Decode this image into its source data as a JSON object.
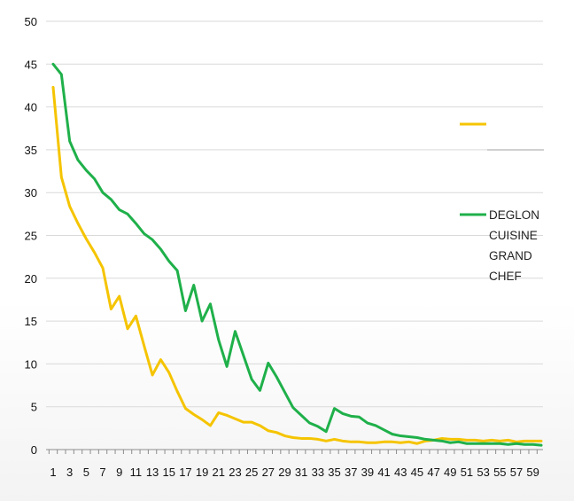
{
  "chart_data": {
    "type": "line",
    "title": "",
    "xlabel": "",
    "ylabel": "",
    "ylim": [
      0,
      50
    ],
    "yticks": [
      0,
      5,
      10,
      15,
      20,
      25,
      30,
      35,
      40,
      45,
      50
    ],
    "x": [
      1,
      2,
      3,
      4,
      5,
      6,
      7,
      8,
      9,
      10,
      11,
      12,
      13,
      14,
      15,
      16,
      17,
      18,
      19,
      20,
      21,
      22,
      23,
      24,
      25,
      26,
      27,
      28,
      29,
      30,
      31,
      32,
      33,
      34,
      35,
      36,
      37,
      38,
      39,
      40,
      41,
      42,
      43,
      44,
      45,
      46,
      47,
      48,
      49,
      50,
      51,
      52,
      53,
      54,
      55,
      56,
      57,
      58,
      59,
      60
    ],
    "xtick_labels": [
      "1",
      "3",
      "5",
      "7",
      "9",
      "11",
      "13",
      "15",
      "17",
      "19",
      "21",
      "23",
      "25",
      "27",
      "29",
      "31",
      "33",
      "35",
      "37",
      "39",
      "41",
      "43",
      "45",
      "47",
      "49",
      "51",
      "53",
      "55",
      "57",
      "59"
    ],
    "grid": true,
    "legend_position": "right",
    "series": [
      {
        "name": "",
        "color": "#f5c400",
        "values": [
          42.3,
          31.8,
          28.4,
          26.4,
          24.6,
          23.0,
          21.2,
          16.4,
          17.9,
          14.1,
          15.6,
          12.1,
          8.7,
          10.5,
          9.0,
          6.8,
          4.8,
          4.1,
          3.5,
          2.8,
          4.3,
          4.0,
          3.6,
          3.2,
          3.2,
          2.8,
          2.2,
          2.0,
          1.6,
          1.4,
          1.3,
          1.3,
          1.2,
          1.0,
          1.2,
          1.0,
          0.9,
          0.9,
          0.8,
          0.8,
          0.9,
          0.9,
          0.8,
          0.9,
          0.7,
          1.0,
          1.1,
          1.3,
          1.2,
          1.2,
          1.1,
          1.1,
          1.0,
          1.1,
          1.0,
          1.1,
          0.9,
          1.0,
          1.0,
          1.0
        ]
      },
      {
        "name": "DEGLON CUISINE GRAND CHEF",
        "label_lines": [
          "DEGLON",
          "CUISINE",
          "GRAND",
          "CHEF"
        ],
        "color": "#1fb04a",
        "values": [
          45.0,
          43.8,
          36.0,
          33.8,
          32.6,
          31.6,
          30.0,
          29.2,
          28.0,
          27.5,
          26.4,
          25.2,
          24.5,
          23.4,
          22.0,
          20.9,
          16.2,
          19.2,
          15.0,
          17.0,
          12.8,
          9.7,
          13.8,
          11.0,
          8.2,
          6.9,
          10.1,
          8.5,
          6.7,
          4.9,
          4.0,
          3.1,
          2.7,
          2.1,
          4.8,
          4.2,
          3.9,
          3.8,
          3.1,
          2.8,
          2.3,
          1.8,
          1.6,
          1.5,
          1.4,
          1.2,
          1.1,
          1.0,
          0.8,
          0.9,
          0.7,
          0.7,
          0.7,
          0.7,
          0.7,
          0.6,
          0.7,
          0.6,
          0.6,
          0.5
        ]
      }
    ]
  }
}
